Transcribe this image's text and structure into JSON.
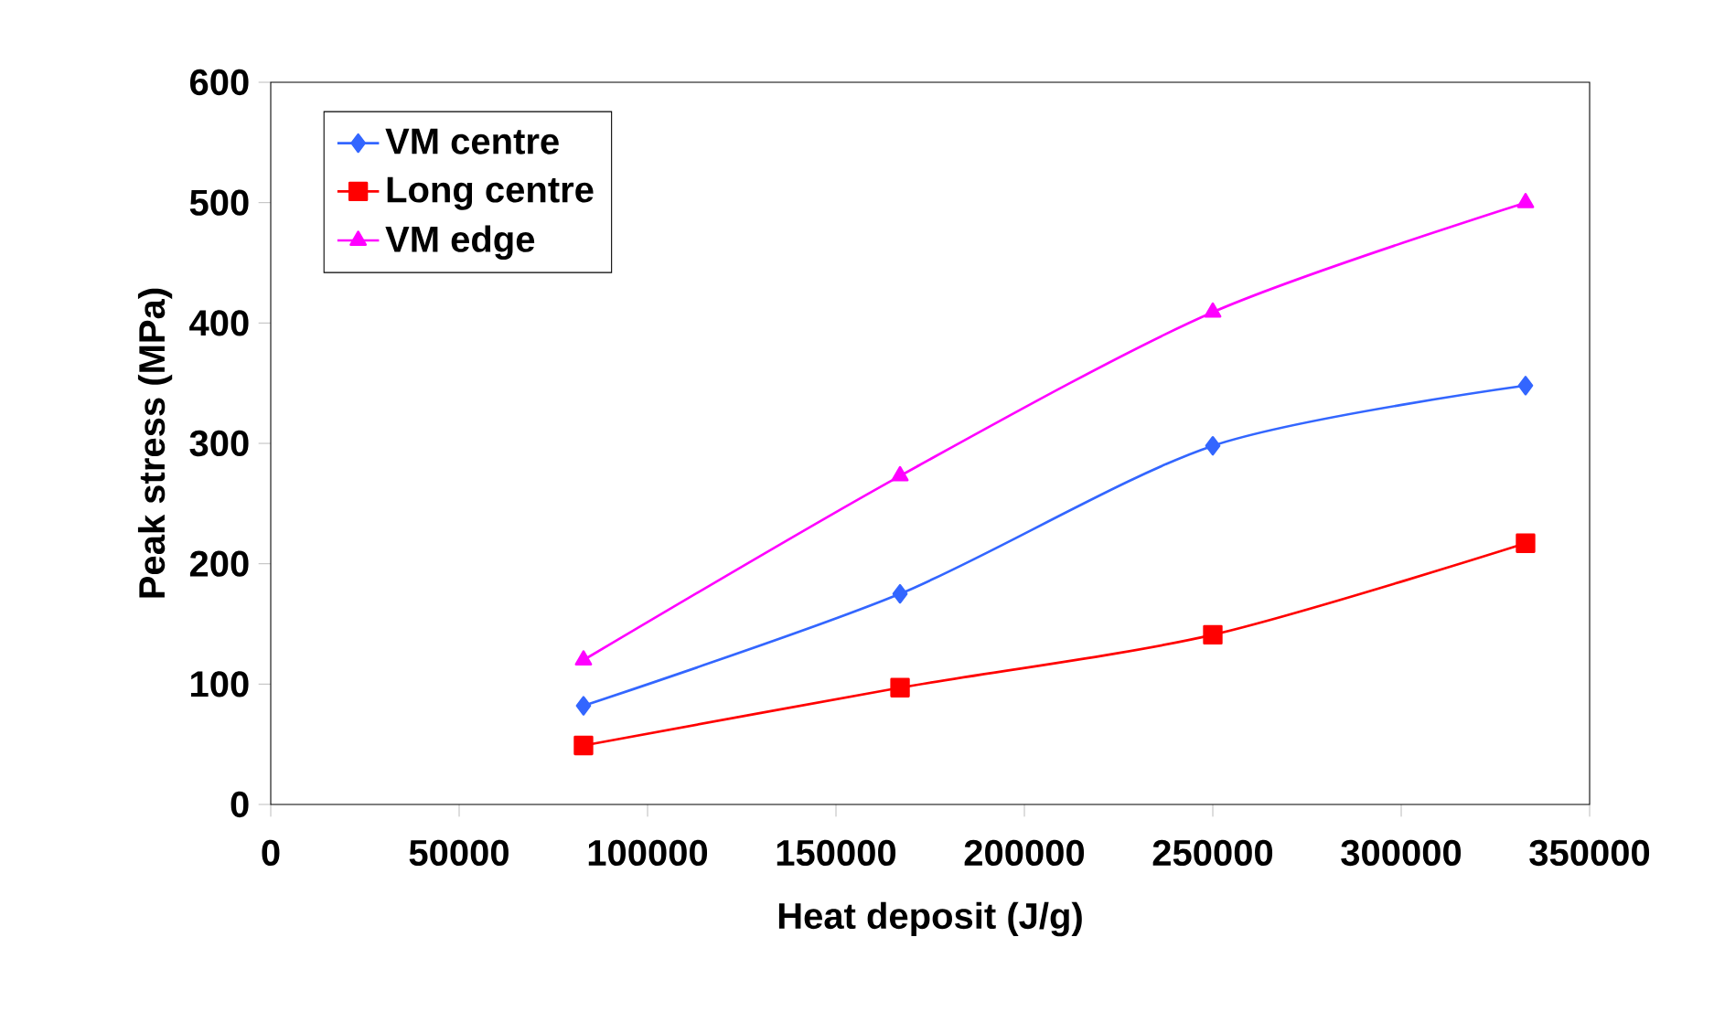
{
  "chart_data": {
    "type": "line",
    "xlabel": "Heat deposit (J/g)",
    "ylabel": "Peak stress (MPa)",
    "x": [
      83000,
      167000,
      250000,
      333000
    ],
    "series": [
      {
        "name": "VM centre",
        "color": "#3366ff",
        "marker": "diamond",
        "values": [
          82,
          175,
          298,
          348
        ]
      },
      {
        "name": "Long centre",
        "color": "#ff0000",
        "marker": "square",
        "values": [
          49,
          97,
          141,
          217
        ]
      },
      {
        "name": "VM edge",
        "color": "#ff00ff",
        "marker": "triangle",
        "values": [
          120,
          273,
          409,
          500
        ]
      }
    ],
    "xlim": [
      0,
      350000
    ],
    "xticks": [
      0,
      50000,
      100000,
      150000,
      200000,
      250000,
      300000,
      350000
    ],
    "ylim": [
      0,
      600
    ],
    "yticks": [
      0,
      100,
      200,
      300,
      400,
      500,
      600
    ],
    "grid": false,
    "legend": "top left",
    "line_style": "solid"
  }
}
